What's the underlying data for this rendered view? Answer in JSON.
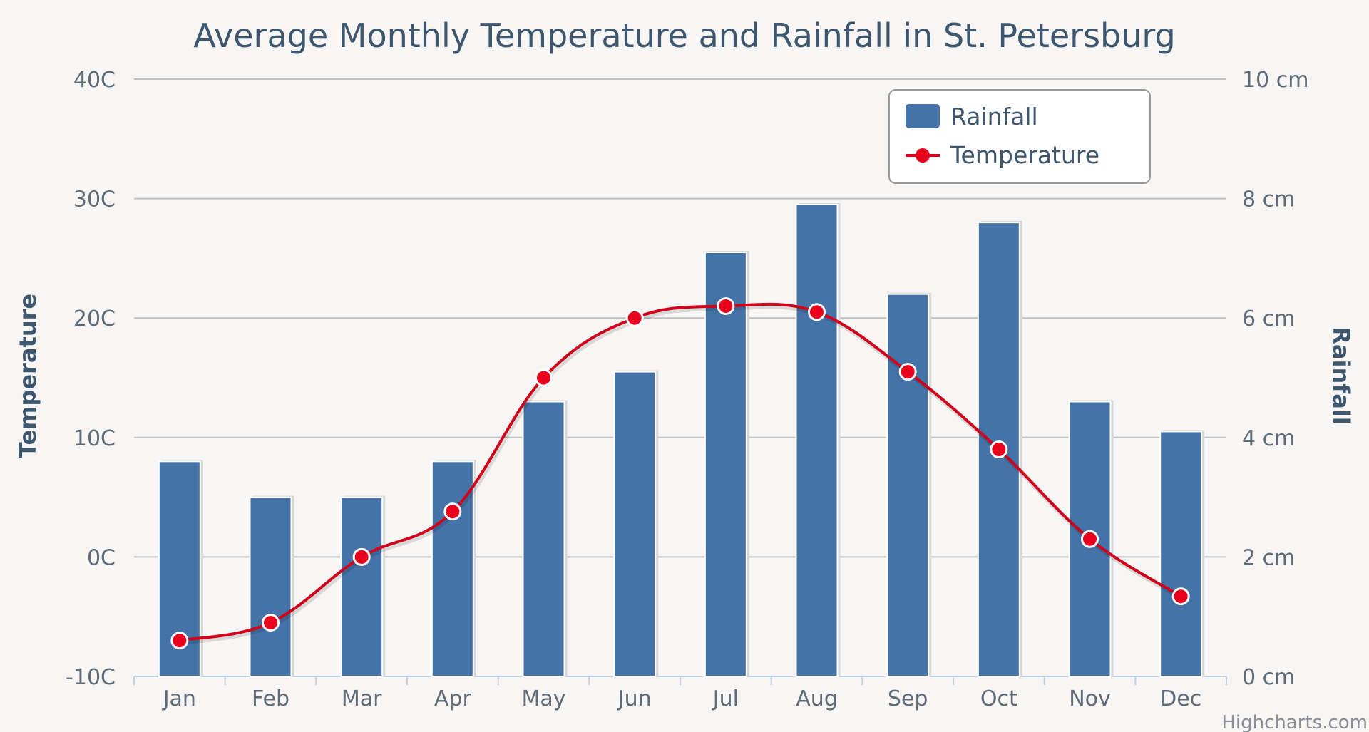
{
  "chart_data": {
    "type": "bar+line",
    "title": "Average Monthly Temperature and Rainfall in St. Petersburg",
    "categories": [
      "Jan",
      "Feb",
      "Mar",
      "Apr",
      "May",
      "Jun",
      "Jul",
      "Aug",
      "Sep",
      "Oct",
      "Nov",
      "Dec"
    ],
    "series": [
      {
        "name": "Rainfall",
        "type": "bar",
        "axis": "right",
        "unit": "cm",
        "color": "#4572a7",
        "values": [
          3.6,
          3.0,
          3.0,
          3.6,
          4.6,
          5.1,
          7.1,
          7.9,
          6.4,
          7.6,
          4.6,
          4.1
        ]
      },
      {
        "name": "Temperature",
        "type": "line",
        "axis": "left",
        "unit": "C",
        "color": "#d0021b",
        "values": [
          -7,
          -5.5,
          0,
          3.8,
          15,
          20,
          21,
          20.5,
          15.5,
          9,
          1.5,
          -3.3
        ]
      }
    ],
    "y_left": {
      "title": "Temperature",
      "range": [
        -10,
        40
      ],
      "tick_values": [
        -10,
        0,
        10,
        20,
        30,
        40
      ],
      "tick_labels": [
        "-10C",
        "0C",
        "10C",
        "20C",
        "30C",
        "40C"
      ]
    },
    "y_right": {
      "title": "Rainfall",
      "range": [
        0,
        10
      ],
      "tick_values": [
        0,
        2,
        4,
        6,
        8,
        10
      ],
      "tick_labels": [
        "0 cm",
        "2 cm",
        "4 cm",
        "6 cm",
        "8 cm",
        "10 cm"
      ]
    },
    "legend": {
      "position": "top-right",
      "items": [
        "Rainfall",
        "Temperature"
      ]
    },
    "grid": true,
    "credit": "Highcharts.com"
  }
}
